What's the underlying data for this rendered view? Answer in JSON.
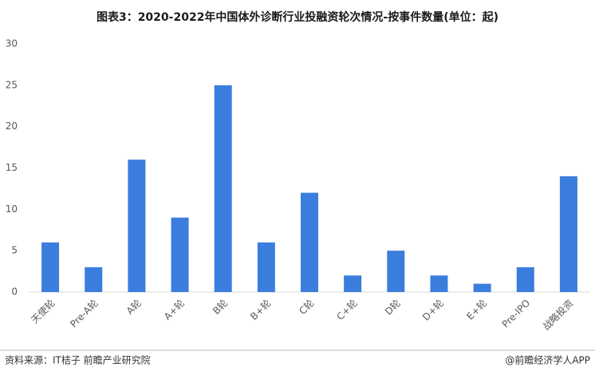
{
  "chart_data": {
    "type": "bar",
    "title": "图表3：2020-2022年中国体外诊断行业投融资轮次情况-按事件数量(单位：起)",
    "categories": [
      "天使轮",
      "Pre-A轮",
      "A轮",
      "A+轮",
      "B轮",
      "B+轮",
      "C轮",
      "C+轮",
      "D轮",
      "D+轮",
      "E+轮",
      "Pre-IPO",
      "战略投资"
    ],
    "values": [
      6,
      3,
      16,
      9,
      25,
      6,
      12,
      2,
      5,
      2,
      1,
      3,
      14
    ],
    "color": "#3b7ddd",
    "ylim": [
      0,
      30
    ],
    "yticks": [
      0,
      5,
      10,
      15,
      20,
      25,
      30
    ],
    "grid": false,
    "source": "资料来源：IT桔子 前瞻产业研究院",
    "credit": "@前瞻经济学人APP"
  }
}
